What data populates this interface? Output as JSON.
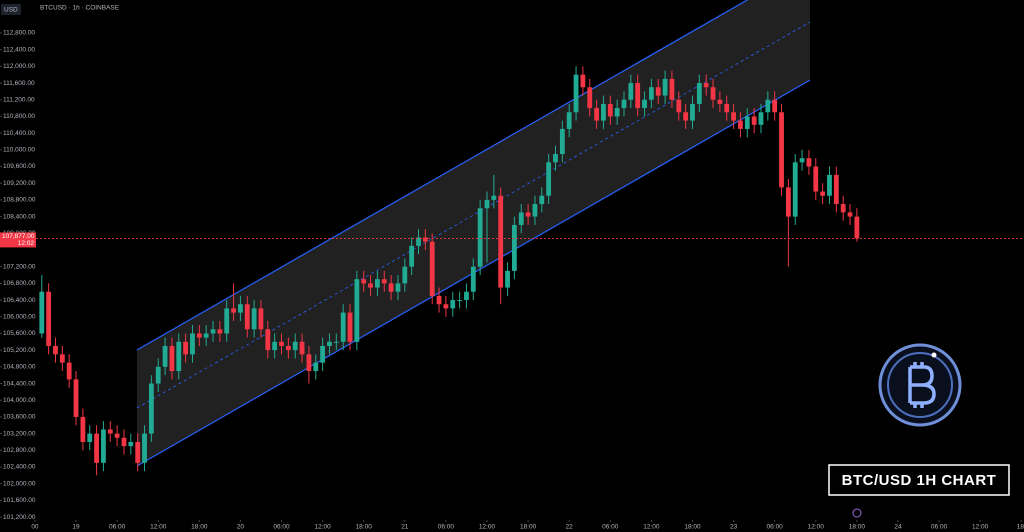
{
  "chart_data": {
    "type": "candlestick",
    "title": "BTCUSD · 1h · COINBASE",
    "currency": "USD",
    "watermark": "BTC/USD 1H CHART",
    "last_price_label": "107,877.00",
    "countdown": "12:02",
    "up_color": "#22ab94",
    "down_color": "#f23645",
    "x": [
      -5,
      -4,
      -3,
      -2,
      -1,
      0,
      1,
      2,
      3,
      4,
      5,
      6,
      7,
      8,
      9,
      10,
      11,
      12,
      13,
      14,
      15,
      16,
      17,
      18,
      19,
      20,
      21,
      22,
      23,
      24,
      25,
      26,
      27,
      28,
      29,
      30,
      31,
      32,
      33,
      34,
      35,
      36,
      37,
      38,
      39,
      40,
      41,
      42,
      43,
      44,
      45,
      46,
      47,
      48,
      49,
      50,
      51,
      52,
      53,
      54,
      55,
      56,
      57,
      58,
      59,
      60,
      61,
      62,
      63,
      64,
      65,
      66,
      67,
      68,
      69,
      70,
      71,
      72,
      73,
      74,
      75,
      76,
      77,
      78,
      79,
      80,
      81,
      82,
      83,
      84,
      85,
      86,
      87,
      88,
      89,
      90,
      91,
      92,
      93,
      94,
      95,
      96,
      97,
      98,
      99,
      100,
      101,
      102,
      103,
      104,
      105,
      106,
      107,
      108,
      109,
      110,
      111,
      112,
      113,
      114
    ],
    "open": [
      105600,
      106600,
      105300,
      105100,
      104900,
      104500,
      103600,
      103000,
      103200,
      102500,
      103300,
      103200,
      103100,
      102900,
      103000,
      102500,
      103200,
      104400,
      104800,
      105300,
      104700,
      105400,
      105100,
      105600,
      105500,
      105600,
      105700,
      105600,
      106200,
      106100,
      106300,
      105700,
      106200,
      105700,
      105200,
      105400,
      105300,
      105200,
      105400,
      105100,
      104700,
      104900,
      105300,
      105400,
      105400,
      106100,
      105400,
      106900,
      106800,
      106700,
      106900,
      106800,
      106600,
      106800,
      107200,
      107700,
      107900,
      107800,
      106500,
      106300,
      106200,
      106400,
      106400,
      106600,
      107200,
      108600,
      108800,
      108900,
      106700,
      107100,
      108200,
      108500,
      108400,
      108700,
      108900,
      109700,
      109900,
      110500,
      110900,
      111800,
      111500,
      111000,
      110700,
      111100,
      110800,
      111000,
      111200,
      111600,
      111000,
      111200,
      111500,
      111300,
      111700,
      111200,
      110900,
      110700,
      111100,
      111600,
      111500,
      111200,
      111100,
      110900,
      110700,
      110500,
      110800,
      110600,
      110900,
      111200,
      110900,
      109100,
      108400,
      109700,
      109800,
      109600,
      109000,
      108900,
      109400,
      108700,
      108500,
      108400
    ],
    "high": [
      107000,
      106800,
      105500,
      105300,
      105100,
      104700,
      103800,
      103400,
      103400,
      103500,
      103500,
      103400,
      103300,
      103200,
      103200,
      103400,
      104600,
      105000,
      105500,
      105500,
      105600,
      105600,
      105800,
      105800,
      105800,
      105900,
      105900,
      106400,
      106800,
      106500,
      106500,
      106400,
      106400,
      105900,
      105600,
      105600,
      105500,
      105600,
      105600,
      105300,
      105100,
      105500,
      105600,
      105600,
      106300,
      106300,
      107100,
      107100,
      107000,
      107100,
      107100,
      107000,
      107000,
      107400,
      107900,
      108100,
      108100,
      108000,
      106700,
      106500,
      106600,
      106600,
      106800,
      107400,
      108800,
      109000,
      109400,
      109100,
      107300,
      108400,
      108700,
      108700,
      108900,
      109100,
      109900,
      110100,
      110700,
      111100,
      112000,
      112000,
      111700,
      111200,
      111300,
      111300,
      111200,
      111400,
      111800,
      111800,
      111400,
      111700,
      111700,
      111900,
      111900,
      111400,
      111100,
      111300,
      111800,
      111800,
      111700,
      111400,
      111300,
      111100,
      110900,
      111000,
      111000,
      111100,
      111400,
      111400,
      111100,
      109300,
      109900,
      110000,
      110000,
      109800,
      109200,
      109600,
      109600,
      108900,
      108700,
      108600
    ],
    "low": [
      105500,
      105100,
      104900,
      104700,
      104300,
      103400,
      102800,
      102800,
      102200,
      102300,
      103000,
      102900,
      102700,
      102700,
      102300,
      102300,
      103000,
      104200,
      104600,
      104500,
      104500,
      104900,
      104900,
      105300,
      105300,
      105400,
      105400,
      105400,
      105900,
      105900,
      105500,
      105500,
      105500,
      105000,
      105000,
      105100,
      105000,
      105000,
      104900,
      104400,
      104500,
      104700,
      105100,
      105200,
      105200,
      105200,
      105200,
      106600,
      106500,
      106500,
      106600,
      106400,
      106400,
      106600,
      107000,
      107500,
      107600,
      106300,
      106100,
      106000,
      106000,
      106200,
      106200,
      106400,
      107000,
      107300,
      108600,
      106300,
      106500,
      106900,
      108000,
      108200,
      108200,
      108500,
      108700,
      109500,
      109700,
      110300,
      110700,
      111300,
      110800,
      110500,
      110500,
      110600,
      110600,
      110800,
      111000,
      110800,
      110800,
      111000,
      111100,
      111100,
      111000,
      110700,
      110500,
      110500,
      110900,
      111300,
      111000,
      110900,
      110700,
      110500,
      110300,
      110300,
      110400,
      110400,
      110700,
      110700,
      108900,
      107200,
      108200,
      109500,
      109400,
      108800,
      108700,
      108700,
      108500,
      108300,
      108200,
      107800
    ],
    "close": [
      106600,
      105300,
      105100,
      104900,
      104500,
      103600,
      103000,
      103200,
      102500,
      103300,
      103200,
      103100,
      102900,
      103000,
      102500,
      103200,
      104400,
      104800,
      105300,
      104700,
      105400,
      105100,
      105600,
      105500,
      105600,
      105700,
      105600,
      106200,
      106100,
      106300,
      105700,
      106200,
      105700,
      105200,
      105400,
      105300,
      105200,
      105400,
      105100,
      104700,
      104900,
      105300,
      105400,
      105400,
      106100,
      105400,
      106900,
      106800,
      106700,
      106900,
      106800,
      106600,
      106800,
      107200,
      107700,
      107900,
      107800,
      106500,
      106300,
      106200,
      106400,
      106400,
      106600,
      107200,
      108600,
      108800,
      108900,
      106700,
      107100,
      108200,
      108500,
      108400,
      108700,
      108900,
      109700,
      109900,
      110500,
      110900,
      111800,
      111500,
      111000,
      110700,
      111100,
      110800,
      111000,
      111200,
      111600,
      111000,
      111200,
      111500,
      111300,
      111700,
      111200,
      110900,
      110700,
      111100,
      111600,
      111500,
      111200,
      111100,
      110900,
      110700,
      110500,
      110800,
      110600,
      110900,
      111200,
      110900,
      109100,
      108400,
      109700,
      109800,
      109600,
      109000,
      108900,
      109400,
      108700,
      108500,
      108400,
      107877
    ],
    "xlim": [
      -11.1,
      138.4
    ],
    "ylim": [
      101130,
      113590
    ],
    "xticks": [
      {
        "value": -6,
        "label": "00"
      },
      {
        "value": 0,
        "label": "19"
      },
      {
        "value": 6,
        "label": "06:00"
      },
      {
        "value": 12,
        "label": "12:00"
      },
      {
        "value": 18,
        "label": "18:00"
      },
      {
        "value": 24,
        "label": "20"
      },
      {
        "value": 30,
        "label": "06:00"
      },
      {
        "value": 36,
        "label": "12:00"
      },
      {
        "value": 42,
        "label": "18:00"
      },
      {
        "value": 48,
        "label": "21"
      },
      {
        "value": 54,
        "label": "06:00"
      },
      {
        "value": 60,
        "label": "12:00"
      },
      {
        "value": 66,
        "label": "18:00"
      },
      {
        "value": 72,
        "label": "22"
      },
      {
        "value": 78,
        "label": "06:00"
      },
      {
        "value": 84,
        "label": "12:00"
      },
      {
        "value": 90,
        "label": "18:00"
      },
      {
        "value": 96,
        "label": "23"
      },
      {
        "value": 102,
        "label": "06:00"
      },
      {
        "value": 108,
        "label": "12:00"
      },
      {
        "value": 114,
        "label": "18:00"
      },
      {
        "value": 120,
        "label": "24"
      },
      {
        "value": 126,
        "label": "06:00"
      },
      {
        "value": 132,
        "label": "12:00"
      },
      {
        "value": 138,
        "label": "18:"
      }
    ],
    "yticks": [
      {
        "value": 101200,
        "label": "101,200.00"
      },
      {
        "value": 101600,
        "label": "101,600.00"
      },
      {
        "value": 102000,
        "label": "102,000.00"
      },
      {
        "value": 102400,
        "label": "102,400.00"
      },
      {
        "value": 102800,
        "label": "102,800.00"
      },
      {
        "value": 103200,
        "label": "103,200.00"
      },
      {
        "value": 103600,
        "label": "103,600.00"
      },
      {
        "value": 104000,
        "label": "104,000.00"
      },
      {
        "value": 104400,
        "label": "104,400.00"
      },
      {
        "value": 104800,
        "label": "104,800.00"
      },
      {
        "value": 105200,
        "label": "105,200.00"
      },
      {
        "value": 105600,
        "label": "105,600.00"
      },
      {
        "value": 106000,
        "label": "106,000.00"
      },
      {
        "value": 106400,
        "label": "106,400.00"
      },
      {
        "value": 106800,
        "label": "106,800.00"
      },
      {
        "value": 107200,
        "label": "107,200.00"
      },
      {
        "value": 108000,
        "label": "108,000.00"
      },
      {
        "value": 108400,
        "label": "108,400.00"
      },
      {
        "value": 108800,
        "label": "108,800.00"
      },
      {
        "value": 109200,
        "label": "109,200.00"
      },
      {
        "value": 109600,
        "label": "109,600.00"
      },
      {
        "value": 110000,
        "label": "110,000.00"
      },
      {
        "value": 110400,
        "label": "110,400.00"
      },
      {
        "value": 110800,
        "label": "110,800.00"
      },
      {
        "value": 111200,
        "label": "111,200.00"
      },
      {
        "value": 111600,
        "label": "111,600.00"
      },
      {
        "value": 112000,
        "label": "112,000.00"
      },
      {
        "value": 112400,
        "label": "112,400.00"
      },
      {
        "value": 112800,
        "label": "112,800.00"
      }
    ]
  }
}
